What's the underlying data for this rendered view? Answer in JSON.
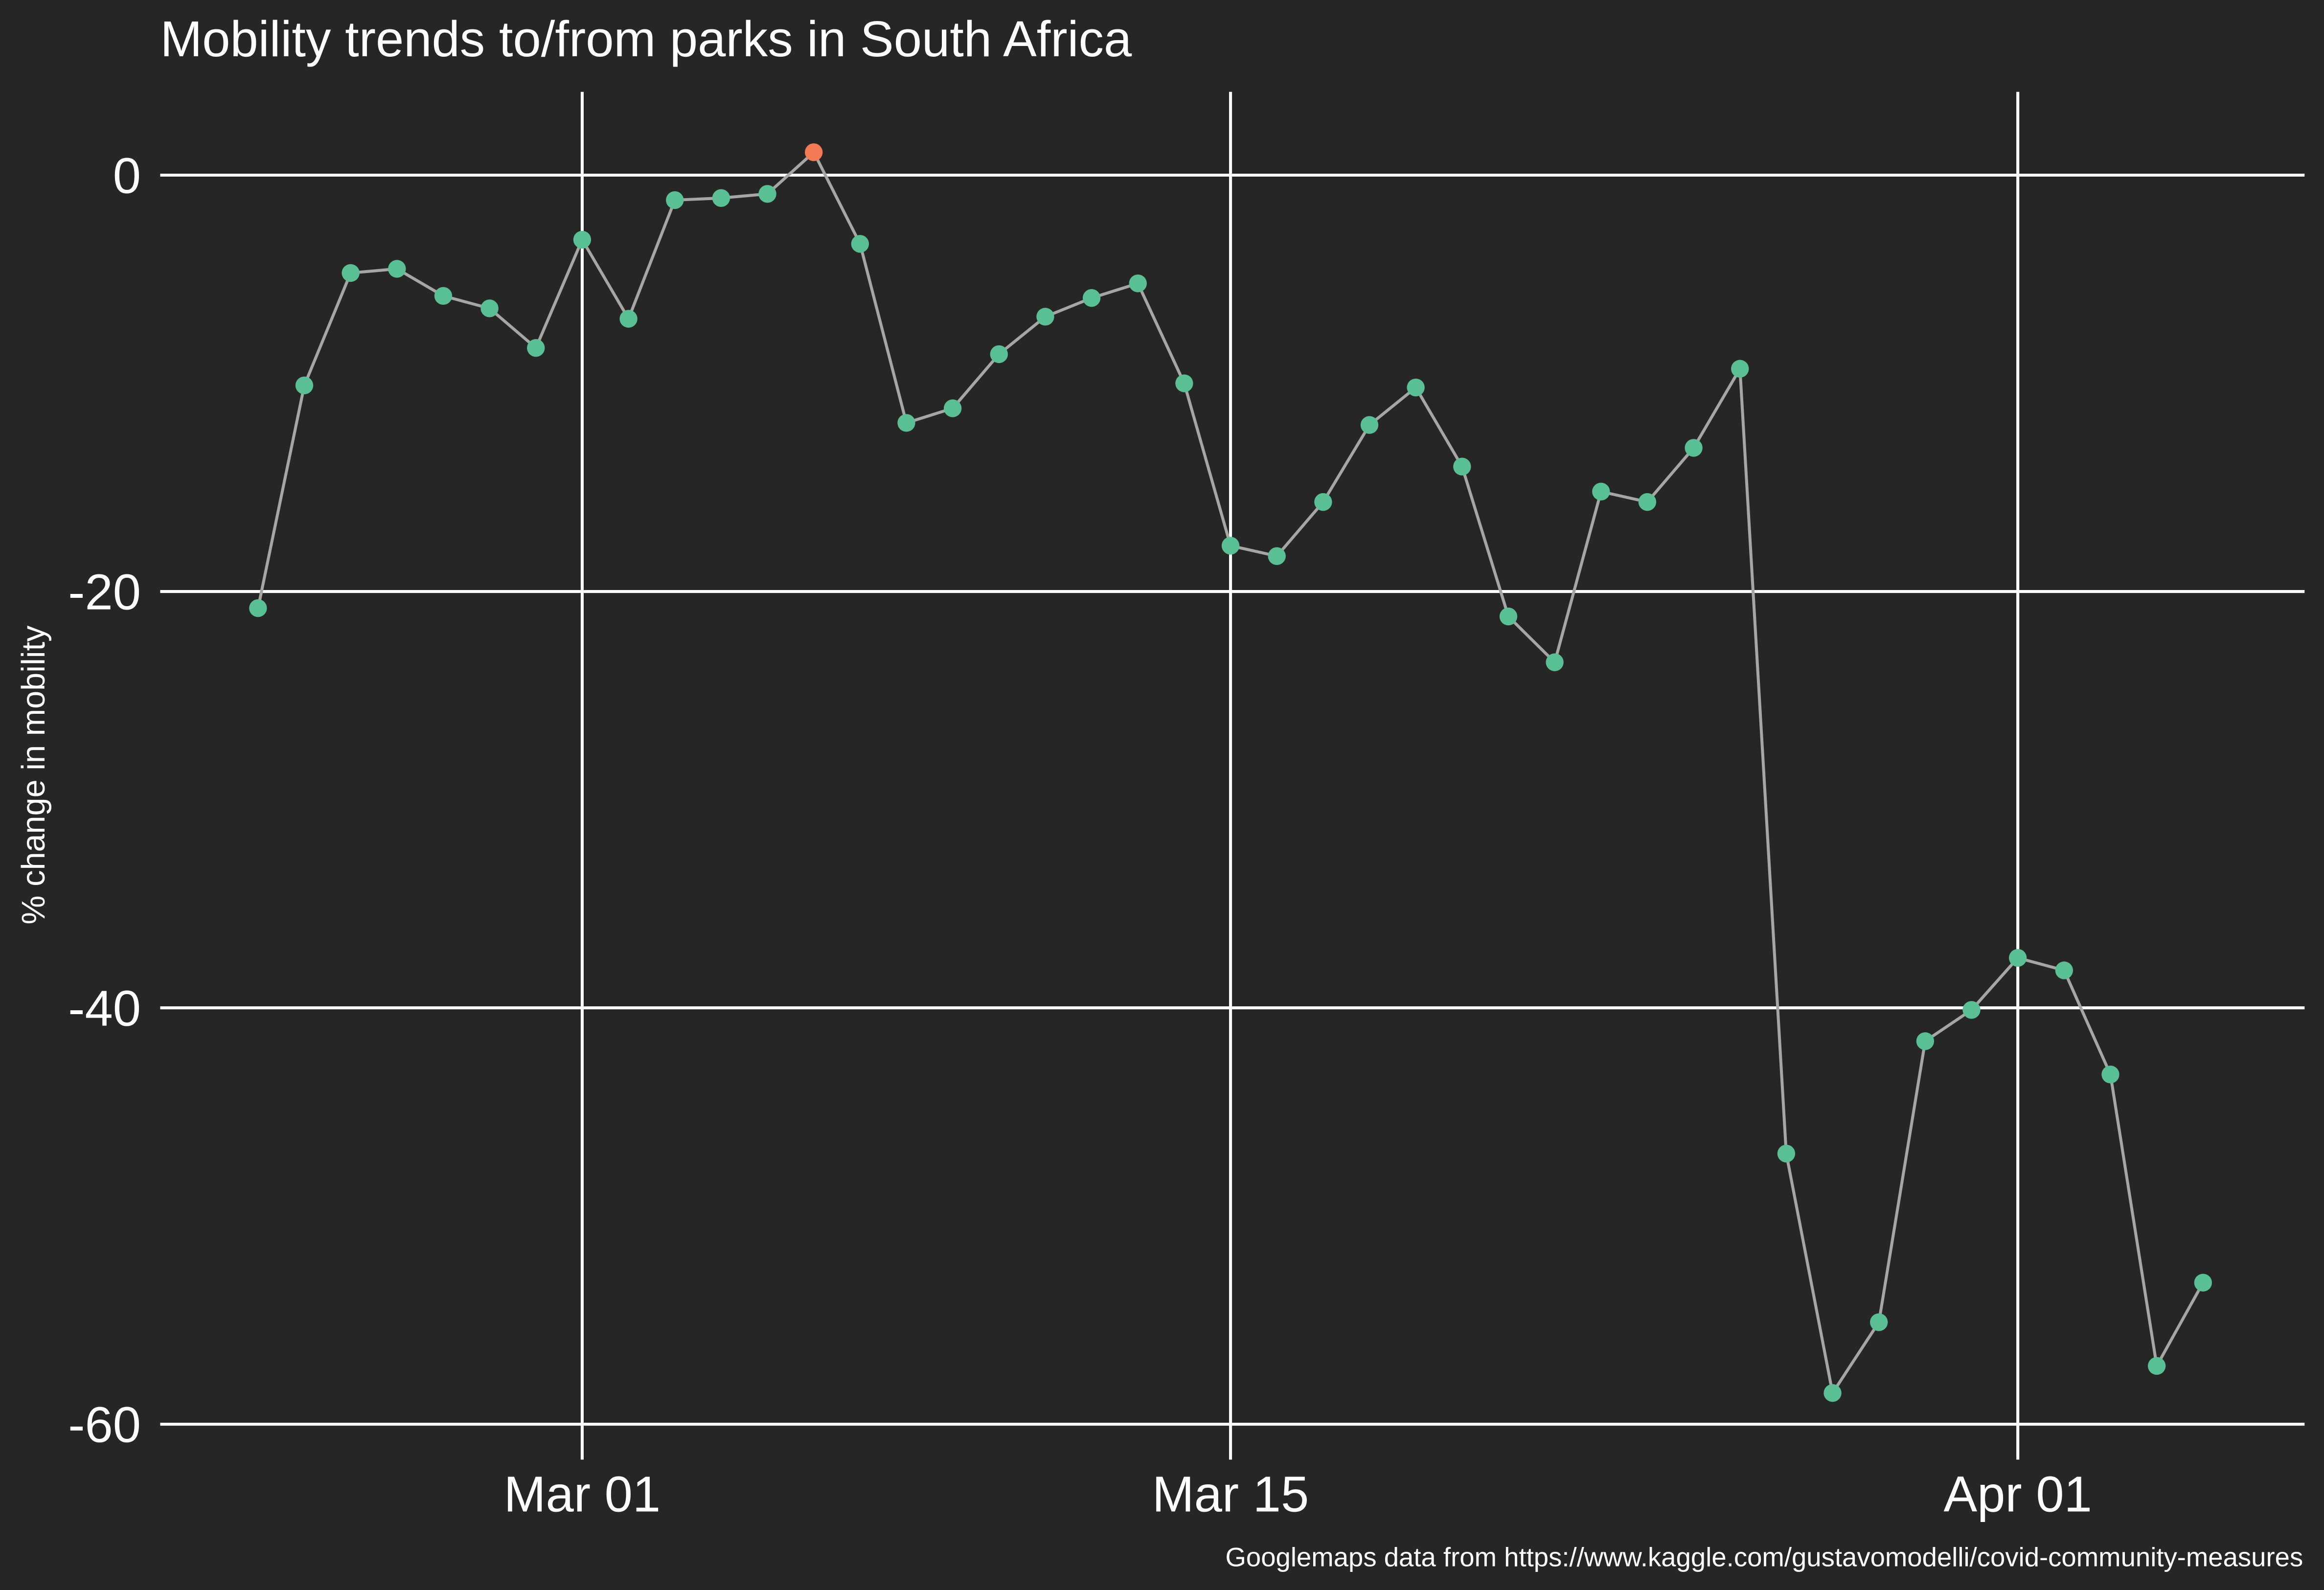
{
  "chart_data": {
    "type": "line",
    "title": "Mobility trends to/from parks in South Africa",
    "y_label": "% change in mobility",
    "caption": "Googlemaps data from https://www.kaggle.com/gustavomodelli/covid-community-measures",
    "x": [
      "Feb 23",
      "Feb 24",
      "Feb 25",
      "Feb 26",
      "Feb 27",
      "Feb 28",
      "Feb 29",
      "Mar 01",
      "Mar 02",
      "Mar 03",
      "Mar 04",
      "Mar 05",
      "Mar 06",
      "Mar 07",
      "Mar 08",
      "Mar 09",
      "Mar 10",
      "Mar 11",
      "Mar 12",
      "Mar 13",
      "Mar 14",
      "Mar 15",
      "Mar 16",
      "Mar 17",
      "Mar 18",
      "Mar 19",
      "Mar 20",
      "Mar 21",
      "Mar 22",
      "Mar 23",
      "Mar 24",
      "Mar 25",
      "Mar 26",
      "Mar 27",
      "Mar 28",
      "Mar 29",
      "Mar 30",
      "Mar 31",
      "Apr 01",
      "Apr 02",
      "Apr 03",
      "Apr 04",
      "Apr 05"
    ],
    "values": [
      -20.8,
      -10.1,
      -4.7,
      -4.5,
      -5.8,
      -6.4,
      -8.3,
      -3.1,
      -6.9,
      -1.2,
      -1.1,
      -0.9,
      1.1,
      -3.3,
      -11.9,
      -11.2,
      -8.6,
      -6.8,
      -5.9,
      -5.2,
      -10.0,
      -17.8,
      -18.3,
      -15.7,
      -12.0,
      -10.2,
      -14.0,
      -21.2,
      -23.4,
      -15.2,
      -15.7,
      -13.1,
      -9.3,
      -47.0,
      -58.5,
      -55.1,
      -41.6,
      -40.1,
      -37.6,
      -38.2,
      -43.2,
      -57.2,
      -53.2
    ],
    "line_color": "#a6a6a6",
    "marker_color": "#5bbf95",
    "highlight": {
      "x": "Mar 06",
      "color": "#f47a56"
    },
    "xticks": [
      "Mar 01",
      "Mar 15",
      "Apr 01"
    ],
    "ylim": [
      -61.7,
      4
    ],
    "yticks": [
      0,
      -20,
      -40,
      -60
    ],
    "grid": true
  }
}
